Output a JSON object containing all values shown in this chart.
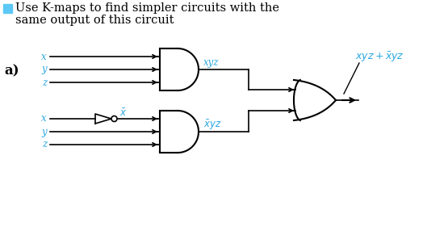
{
  "title_line1": "Use K-maps to find simpler circuits with the",
  "title_line2": "same output of this circuit",
  "title_color": "#000000",
  "bullet_color": "#5BC8F5",
  "label_color": "#2AA8E0",
  "label_a": "a)",
  "var_x": "x",
  "var_y": "y",
  "var_z": "z",
  "bg_color": "#ffffff"
}
